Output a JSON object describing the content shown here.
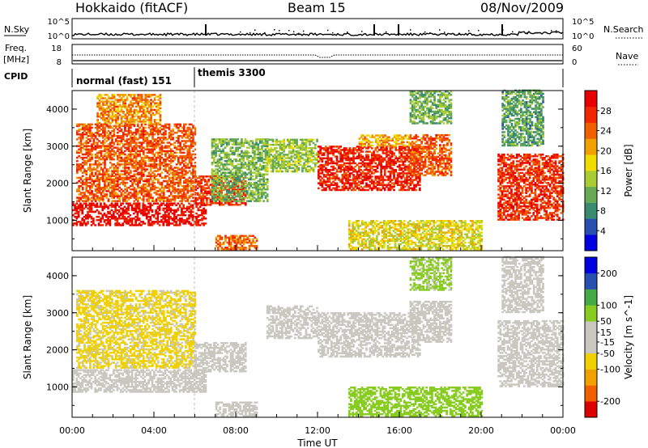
{
  "header": {
    "station": "Hokkaido (fitACF)",
    "beam": "Beam 15",
    "date": "08/Nov/2009"
  },
  "strip_labels": {
    "nsky": "N.Sky",
    "nsearch": "N.Search",
    "freq": "Freq.",
    "freq_unit": "[MHz]",
    "nave": "Nave",
    "cpid": "CPID",
    "left_ticks_top": [
      "10^5",
      "10^0"
    ],
    "right_ticks_top": [
      "10^5",
      "10^0"
    ],
    "left_ticks_freq": [
      "18",
      "8"
    ],
    "right_ticks_nave": [
      "60",
      "0"
    ]
  },
  "cpid_modes": [
    {
      "label": "normal (fast) 151",
      "start_h": 0,
      "end_h": 6
    },
    {
      "label": "themis 3300",
      "start_h": 6,
      "end_h": 24
    }
  ],
  "axes": {
    "xlabel": "Time UT",
    "ylabel": "Slant Range [km]",
    "x_ticks": [
      "00:00",
      "04:00",
      "08:00",
      "12:00",
      "16:00",
      "20:00",
      "00:00"
    ],
    "x_tick_hours": [
      0,
      4,
      8,
      12,
      16,
      20,
      24
    ],
    "y_ticks": [
      "1000",
      "2000",
      "3000",
      "4000"
    ],
    "y_tick_values": [
      1000,
      2000,
      3000,
      4000
    ]
  },
  "chart_data": [
    {
      "type": "heatmap",
      "xlabel": "Time UT",
      "ylabel": "Slant Range [km]",
      "xlim": [
        0,
        24
      ],
      "ylim": [
        180,
        4500
      ],
      "colorbar": {
        "label": "Power [dB]",
        "ticks": [
          "28",
          "24",
          "20",
          "16",
          "12",
          "8",
          "4"
        ],
        "tick_values": [
          28,
          24,
          20,
          16,
          12,
          8,
          4
        ],
        "range": [
          0,
          32
        ],
        "colors": [
          "#0000e0",
          "#2850b0",
          "#3a8a70",
          "#66aa55",
          "#aacc33",
          "#f0dc00",
          "#f0a000",
          "#f06000",
          "#f02800",
          "#e80000"
        ]
      },
      "regions": [
        {
          "t0": 0.0,
          "t1": 6.5,
          "r0": 850,
          "r1": 1450,
          "level": 30
        },
        {
          "t0": 0.2,
          "t1": 6.0,
          "r0": 1500,
          "r1": 3600,
          "level": 25
        },
        {
          "t0": 1.2,
          "t1": 4.3,
          "r0": 3600,
          "r1": 4400,
          "level": 22
        },
        {
          "t0": 6.0,
          "t1": 8.5,
          "r0": 1400,
          "r1": 2200,
          "level": 27
        },
        {
          "t0": 6.8,
          "t1": 9.5,
          "r0": 1500,
          "r1": 3200,
          "level": 12
        },
        {
          "t0": 7.0,
          "t1": 9.0,
          "r0": 200,
          "r1": 600,
          "level": 24
        },
        {
          "t0": 9.5,
          "t1": 12.0,
          "r0": 2300,
          "r1": 3200,
          "level": 14
        },
        {
          "t0": 12.0,
          "t1": 17.0,
          "r0": 1800,
          "r1": 3000,
          "level": 28
        },
        {
          "t0": 14.0,
          "t1": 16.5,
          "r0": 3000,
          "r1": 3300,
          "level": 20
        },
        {
          "t0": 16.5,
          "t1": 18.5,
          "r0": 2200,
          "r1": 3300,
          "level": 25
        },
        {
          "t0": 13.5,
          "t1": 20.0,
          "r0": 200,
          "r1": 1000,
          "level": 17
        },
        {
          "t0": 20.8,
          "t1": 24.0,
          "r0": 1000,
          "r1": 2800,
          "level": 27
        },
        {
          "t0": 16.5,
          "t1": 18.5,
          "r0": 3600,
          "r1": 4500,
          "level": 12
        },
        {
          "t0": 21.0,
          "t1": 23.0,
          "r0": 3000,
          "r1": 4500,
          "level": 10
        }
      ]
    },
    {
      "type": "heatmap",
      "xlabel": "Time UT",
      "ylabel": "Slant Range [km]",
      "xlim": [
        0,
        24
      ],
      "ylim": [
        180,
        4500
      ],
      "colorbar": {
        "label": "Velocity [m s^-1]",
        "ticks": [
          "200",
          "100",
          "50",
          "15",
          "-15",
          "-50",
          "-100",
          "-200"
        ],
        "tick_values": [
          200,
          100,
          50,
          15,
          -15,
          -50,
          -100,
          -200
        ],
        "range": [
          -250,
          250
        ],
        "colors": [
          "#dd0000",
          "#f06000",
          "#f0a000",
          "#f0d000",
          "#c8c8c0",
          "#c8c8c0",
          "#88cc22",
          "#44aa44",
          "#2850b0",
          "#0000e0"
        ]
      },
      "regions": [
        {
          "t0": 0.0,
          "t1": 6.5,
          "r0": 850,
          "r1": 1450,
          "level": 0
        },
        {
          "t0": 0.2,
          "t1": 6.0,
          "r0": 1500,
          "r1": 3600,
          "level": -60
        },
        {
          "t0": 6.0,
          "t1": 8.5,
          "r0": 1400,
          "r1": 2200,
          "level": 0
        },
        {
          "t0": 7.0,
          "t1": 9.0,
          "r0": 200,
          "r1": 600,
          "level": 0
        },
        {
          "t0": 9.5,
          "t1": 12.0,
          "r0": 2300,
          "r1": 3200,
          "level": 0
        },
        {
          "t0": 12.0,
          "t1": 17.0,
          "r0": 1800,
          "r1": 3000,
          "level": -5
        },
        {
          "t0": 16.5,
          "t1": 18.5,
          "r0": 2200,
          "r1": 3300,
          "level": 0
        },
        {
          "t0": 13.5,
          "t1": 20.0,
          "r0": 200,
          "r1": 1000,
          "level": 70
        },
        {
          "t0": 20.8,
          "t1": 24.0,
          "r0": 1000,
          "r1": 2800,
          "level": 0
        },
        {
          "t0": 16.5,
          "t1": 18.5,
          "r0": 3600,
          "r1": 4500,
          "level": 60
        },
        {
          "t0": 21.0,
          "t1": 23.0,
          "r0": 3000,
          "r1": 4500,
          "level": 0
        }
      ]
    }
  ]
}
